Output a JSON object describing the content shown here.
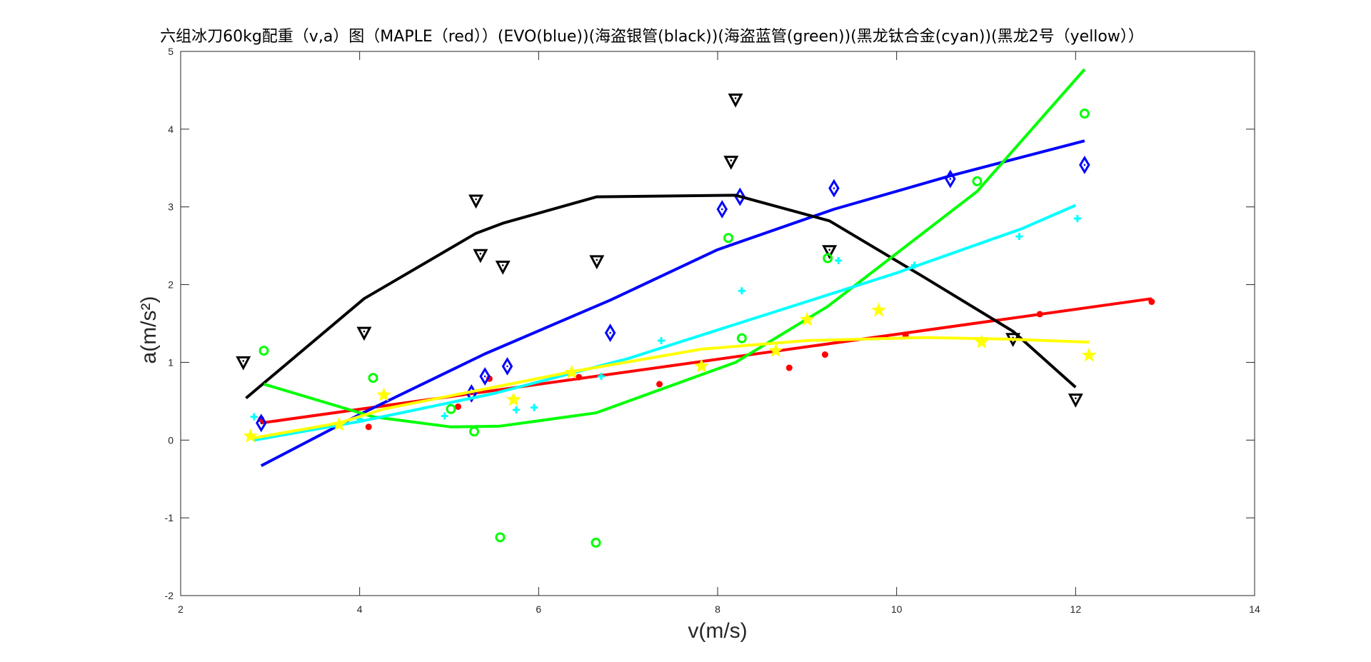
{
  "chart_data": {
    "type": "scatter",
    "title": "六组冰刀60kg配重（v,a）图（MAPLE（red））(EVO(blue))(海盗银管(black))(海盗蓝管(green))(黑龙钛合金(cyan))(黑龙2号（yellow））",
    "xlabel": "v(m/s)",
    "ylabel": "a(m/s²)",
    "xlim": [
      2,
      14
    ],
    "ylim": [
      -2,
      5
    ],
    "xticks": [
      2,
      4,
      6,
      8,
      10,
      12,
      14
    ],
    "yticks": [
      -2,
      -1,
      0,
      1,
      2,
      3,
      4,
      5
    ],
    "grid": false,
    "legend": "none",
    "series": [
      {
        "color": "#ff0000",
        "marker": "point",
        "points": [
          [
            2.9,
            0.27
          ],
          [
            4.1,
            0.17
          ],
          [
            5.1,
            0.43
          ],
          [
            5.45,
            0.79
          ],
          [
            6.45,
            0.81
          ],
          [
            7.35,
            0.72
          ],
          [
            8.8,
            0.93
          ],
          [
            9.2,
            1.1
          ],
          [
            10.1,
            1.35
          ],
          [
            11.6,
            1.62
          ],
          [
            12.85,
            1.78
          ]
        ],
        "fit": [
          [
            2.9,
            0.22
          ],
          [
            12.85,
            1.82
          ]
        ]
      },
      {
        "color": "#0000ff",
        "marker": "diamond",
        "points": [
          [
            2.9,
            0.22
          ],
          [
            5.25,
            0.6
          ],
          [
            5.4,
            0.82
          ],
          [
            5.65,
            0.95
          ],
          [
            6.8,
            1.38
          ],
          [
            8.05,
            2.97
          ],
          [
            8.25,
            3.13
          ],
          [
            9.3,
            3.24
          ],
          [
            10.6,
            3.36
          ],
          [
            12.1,
            3.54
          ]
        ],
        "fit": [
          [
            2.9,
            -0.33
          ],
          [
            4,
            0.33
          ],
          [
            5.4,
            1.11
          ],
          [
            6.8,
            1.8
          ],
          [
            8,
            2.45
          ],
          [
            9.3,
            2.97
          ],
          [
            10.6,
            3.4
          ],
          [
            12.1,
            3.85
          ]
        ]
      },
      {
        "color": "#000000",
        "marker": "triangle-down",
        "points": [
          [
            2.7,
            1.0
          ],
          [
            4.05,
            1.38
          ],
          [
            5.3,
            3.08
          ],
          [
            5.35,
            2.38
          ],
          [
            5.6,
            2.23
          ],
          [
            6.65,
            2.3
          ],
          [
            8.15,
            3.58
          ],
          [
            8.2,
            4.38
          ],
          [
            9.25,
            2.43
          ],
          [
            11.3,
            1.3
          ],
          [
            12.0,
            0.52
          ]
        ],
        "fit": [
          [
            2.73,
            0.54
          ],
          [
            4.05,
            1.82
          ],
          [
            5.3,
            2.66
          ],
          [
            5.6,
            2.79
          ],
          [
            6.65,
            3.13
          ],
          [
            8.2,
            3.15
          ],
          [
            9.25,
            2.82
          ],
          [
            10.3,
            2.1
          ],
          [
            11.3,
            1.4
          ],
          [
            12.0,
            0.68
          ]
        ]
      },
      {
        "color": "#00ff00",
        "marker": "circle",
        "points": [
          [
            2.93,
            1.15
          ],
          [
            4.15,
            0.8
          ],
          [
            5.02,
            0.4
          ],
          [
            5.28,
            0.11
          ],
          [
            5.57,
            -1.25
          ],
          [
            6.64,
            -1.32
          ],
          [
            8.12,
            2.6
          ],
          [
            8.27,
            1.31
          ],
          [
            9.23,
            2.34
          ],
          [
            10.9,
            3.33
          ],
          [
            12.1,
            4.2
          ]
        ],
        "fit": [
          [
            2.93,
            0.72
          ],
          [
            4.15,
            0.3
          ],
          [
            5.02,
            0.17
          ],
          [
            5.57,
            0.18
          ],
          [
            6.64,
            0.35
          ],
          [
            8.2,
            1.0
          ],
          [
            9.23,
            1.72
          ],
          [
            10.9,
            3.2
          ],
          [
            12.1,
            4.77
          ]
        ]
      },
      {
        "color": "#00ffff",
        "marker": "plus",
        "points": [
          [
            2.82,
            0.3
          ],
          [
            4.0,
            0.27
          ],
          [
            4.95,
            0.31
          ],
          [
            5.75,
            0.39
          ],
          [
            5.95,
            0.42
          ],
          [
            6.7,
            0.82
          ],
          [
            7.37,
            1.28
          ],
          [
            8.27,
            1.92
          ],
          [
            9.35,
            2.31
          ],
          [
            10.2,
            2.25
          ],
          [
            11.37,
            2.62
          ],
          [
            12.02,
            2.85
          ]
        ],
        "fit": [
          [
            2.82,
            0.0
          ],
          [
            4.0,
            0.24
          ],
          [
            5.5,
            0.6
          ],
          [
            7.0,
            1.05
          ],
          [
            8.5,
            1.6
          ],
          [
            10.0,
            2.15
          ],
          [
            11.4,
            2.72
          ],
          [
            12.0,
            3.02
          ]
        ]
      },
      {
        "color": "#ffff00",
        "marker": "star",
        "points": [
          [
            2.78,
            0.05
          ],
          [
            3.77,
            0.2
          ],
          [
            4.27,
            0.58
          ],
          [
            5.72,
            0.52
          ],
          [
            6.37,
            0.87
          ],
          [
            7.82,
            0.95
          ],
          [
            8.65,
            1.15
          ],
          [
            9.0,
            1.55
          ],
          [
            9.8,
            1.67
          ],
          [
            10.95,
            1.26
          ],
          [
            12.15,
            1.09
          ]
        ],
        "fit": [
          [
            2.78,
            0.02
          ],
          [
            3.77,
            0.22
          ],
          [
            4.27,
            0.4
          ],
          [
            5.72,
            0.73
          ],
          [
            6.37,
            0.88
          ],
          [
            7.82,
            1.17
          ],
          [
            9.0,
            1.28
          ],
          [
            10.3,
            1.32
          ],
          [
            11.2,
            1.3
          ],
          [
            12.15,
            1.26
          ]
        ]
      }
    ]
  }
}
